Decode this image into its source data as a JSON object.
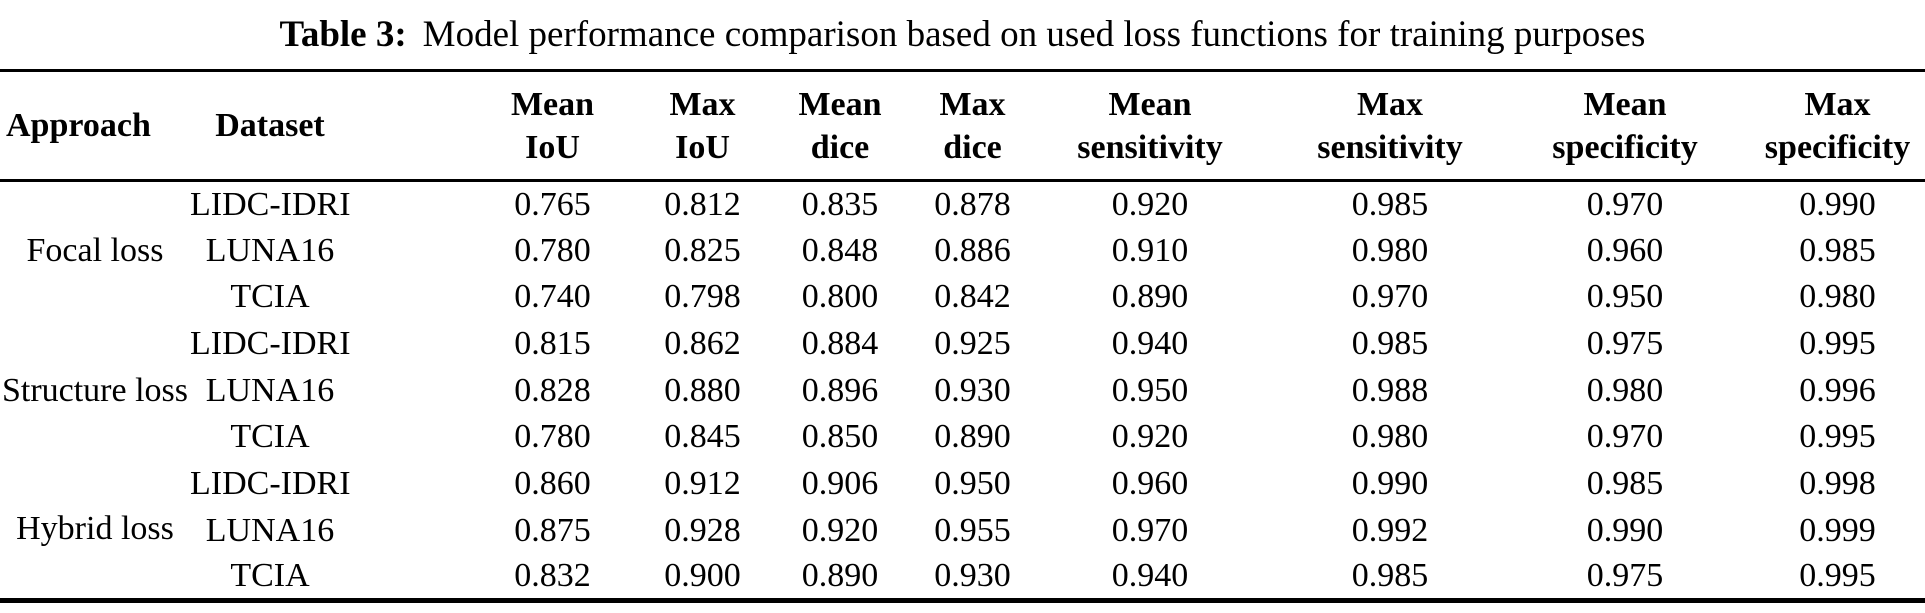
{
  "caption": {
    "label": "Table 3:",
    "text": "Model performance comparison based on used loss functions for training purposes"
  },
  "table": {
    "columns": [
      {
        "id": "approach",
        "lines": [
          "Approach"
        ]
      },
      {
        "id": "dataset",
        "lines": [
          "Dataset"
        ]
      },
      {
        "id": "mean-iou",
        "lines": [
          "Mean",
          "IoU"
        ]
      },
      {
        "id": "max-iou",
        "lines": [
          "Max",
          "IoU"
        ]
      },
      {
        "id": "mean-dice",
        "lines": [
          "Mean",
          "dice"
        ]
      },
      {
        "id": "max-dice",
        "lines": [
          "Max",
          "dice"
        ]
      },
      {
        "id": "mean-sensitivity",
        "lines": [
          "Mean",
          "sensitivity"
        ]
      },
      {
        "id": "max-sensitivity",
        "lines": [
          "Max",
          "sensitivity"
        ]
      },
      {
        "id": "mean-specificity",
        "lines": [
          "Mean",
          "specificity"
        ]
      },
      {
        "id": "max-specificity",
        "lines": [
          "Max",
          "specificity"
        ]
      }
    ],
    "groups": [
      {
        "approach": "Focal loss",
        "rows": [
          {
            "dataset": "LIDC-IDRI",
            "values": [
              "0.765",
              "0.812",
              "0.835",
              "0.878",
              "0.920",
              "0.985",
              "0.970",
              "0.990"
            ]
          },
          {
            "dataset": "LUNA16",
            "values": [
              "0.780",
              "0.825",
              "0.848",
              "0.886",
              "0.910",
              "0.980",
              "0.960",
              "0.985"
            ]
          },
          {
            "dataset": "TCIA",
            "values": [
              "0.740",
              "0.798",
              "0.800",
              "0.842",
              "0.890",
              "0.970",
              "0.950",
              "0.980"
            ]
          }
        ]
      },
      {
        "approach": "Structure loss",
        "rows": [
          {
            "dataset": "LIDC-IDRI",
            "values": [
              "0.815",
              "0.862",
              "0.884",
              "0.925",
              "0.940",
              "0.985",
              "0.975",
              "0.995"
            ]
          },
          {
            "dataset": "LUNA16",
            "values": [
              "0.828",
              "0.880",
              "0.896",
              "0.930",
              "0.950",
              "0.988",
              "0.980",
              "0.996"
            ]
          },
          {
            "dataset": "TCIA",
            "values": [
              "0.780",
              "0.845",
              "0.850",
              "0.890",
              "0.920",
              "0.980",
              "0.970",
              "0.995"
            ]
          }
        ]
      },
      {
        "approach": "Hybrid loss",
        "rows": [
          {
            "dataset": "LIDC-IDRI",
            "values": [
              "0.860",
              "0.912",
              "0.906",
              "0.950",
              "0.960",
              "0.990",
              "0.985",
              "0.998"
            ]
          },
          {
            "dataset": "LUNA16",
            "values": [
              "0.875",
              "0.928",
              "0.920",
              "0.955",
              "0.970",
              "0.992",
              "0.990",
              "0.999"
            ]
          },
          {
            "dataset": "TCIA",
            "values": [
              "0.832",
              "0.900",
              "0.890",
              "0.930",
              "0.940",
              "0.985",
              "0.975",
              "0.995"
            ]
          }
        ]
      }
    ]
  },
  "chart_data": {
    "type": "table",
    "title": "Table 3: Model performance comparison based on used loss functions for training purposes",
    "columns": [
      "Approach",
      "Dataset",
      "Mean IoU",
      "Max IoU",
      "Mean dice",
      "Max dice",
      "Mean sensitivity",
      "Max sensitivity",
      "Mean specificity",
      "Max specificity"
    ],
    "rows": [
      [
        "Focal loss",
        "LIDC-IDRI",
        0.765,
        0.812,
        0.835,
        0.878,
        0.92,
        0.985,
        0.97,
        0.99
      ],
      [
        "Focal loss",
        "LUNA16",
        0.78,
        0.825,
        0.848,
        0.886,
        0.91,
        0.98,
        0.96,
        0.985
      ],
      [
        "Focal loss",
        "TCIA",
        0.74,
        0.798,
        0.8,
        0.842,
        0.89,
        0.97,
        0.95,
        0.98
      ],
      [
        "Structure loss",
        "LIDC-IDRI",
        0.815,
        0.862,
        0.884,
        0.925,
        0.94,
        0.985,
        0.975,
        0.995
      ],
      [
        "Structure loss",
        "LUNA16",
        0.828,
        0.88,
        0.896,
        0.93,
        0.95,
        0.988,
        0.98,
        0.996
      ],
      [
        "Structure loss",
        "TCIA",
        0.78,
        0.845,
        0.85,
        0.89,
        0.92,
        0.98,
        0.97,
        0.995
      ],
      [
        "Hybrid loss",
        "LIDC-IDRI",
        0.86,
        0.912,
        0.906,
        0.95,
        0.96,
        0.99,
        0.985,
        0.998
      ],
      [
        "Hybrid loss",
        "LUNA16",
        0.875,
        0.928,
        0.92,
        0.955,
        0.97,
        0.992,
        0.99,
        0.999
      ],
      [
        "Hybrid loss",
        "TCIA",
        0.832,
        0.9,
        0.89,
        0.93,
        0.94,
        0.985,
        0.975,
        0.995
      ]
    ]
  }
}
